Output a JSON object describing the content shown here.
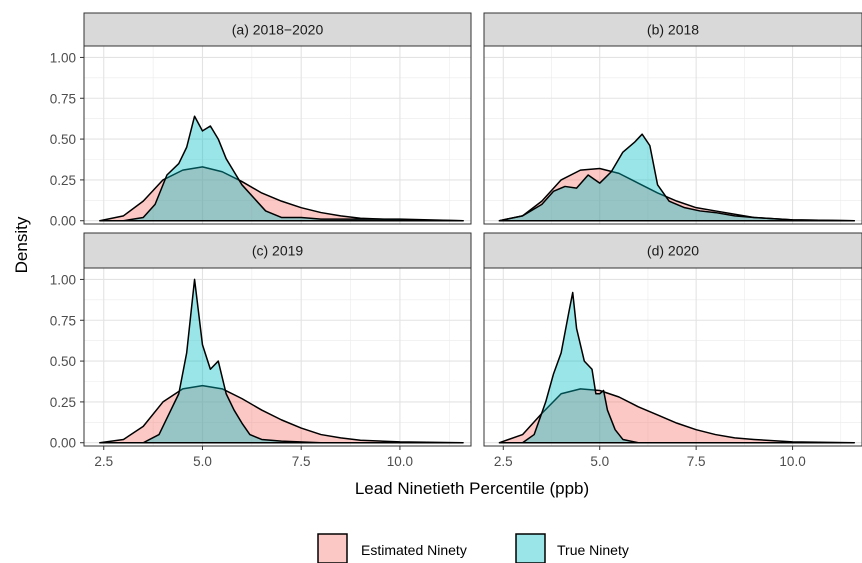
{
  "chart_data": {
    "type": "area",
    "xlabel": "Lead Ninetieth Percentile (ppb)",
    "ylabel": "Density",
    "xlim": [
      2.0,
      11.8
    ],
    "ylim": [
      -0.02,
      1.07
    ],
    "xticks": [
      2.5,
      5.0,
      7.5,
      10.0
    ],
    "xtick_labels": [
      "2.5",
      "5.0",
      "7.5",
      "10.0"
    ],
    "yticks": [
      0.0,
      0.25,
      0.5,
      0.75,
      1.0
    ],
    "ytick_labels": [
      "0.00",
      "0.25",
      "0.50",
      "0.75",
      "1.00"
    ],
    "grid": true,
    "legend_position": "bottom",
    "legend": [
      {
        "name": "Estimated Ninety",
        "color": "#F8766D"
      },
      {
        "name": "True Ninety",
        "color": "#00BFC4"
      }
    ],
    "panels": [
      {
        "title": "(a) 2018−2020",
        "series": [
          {
            "name": "Estimated Ninety",
            "points": [
              [
                2.4,
                0.0
              ],
              [
                3.0,
                0.03
              ],
              [
                3.5,
                0.12
              ],
              [
                4.0,
                0.25
              ],
              [
                4.5,
                0.31
              ],
              [
                5.0,
                0.33
              ],
              [
                5.5,
                0.3
              ],
              [
                6.0,
                0.24
              ],
              [
                6.5,
                0.17
              ],
              [
                7.0,
                0.12
              ],
              [
                7.5,
                0.08
              ],
              [
                8.0,
                0.05
              ],
              [
                8.5,
                0.03
              ],
              [
                9.0,
                0.015
              ],
              [
                10.0,
                0.005
              ],
              [
                11.6,
                0.0
              ]
            ]
          },
          {
            "name": "True Ninety",
            "points": [
              [
                3.0,
                0.0
              ],
              [
                3.5,
                0.02
              ],
              [
                3.8,
                0.1
              ],
              [
                4.1,
                0.28
              ],
              [
                4.4,
                0.35
              ],
              [
                4.6,
                0.45
              ],
              [
                4.8,
                0.64
              ],
              [
                5.0,
                0.55
              ],
              [
                5.2,
                0.58
              ],
              [
                5.4,
                0.5
              ],
              [
                5.6,
                0.38
              ],
              [
                5.8,
                0.3
              ],
              [
                6.0,
                0.22
              ],
              [
                6.3,
                0.14
              ],
              [
                6.6,
                0.06
              ],
              [
                7.0,
                0.02
              ],
              [
                7.5,
                0.02
              ],
              [
                8.0,
                0.01
              ],
              [
                9.0,
                0.01
              ],
              [
                10.0,
                0.01
              ],
              [
                11.6,
                0.0
              ]
            ]
          }
        ]
      },
      {
        "title": "(b) 2018",
        "series": [
          {
            "name": "Estimated Ninety",
            "points": [
              [
                2.4,
                0.0
              ],
              [
                3.0,
                0.03
              ],
              [
                3.5,
                0.12
              ],
              [
                4.0,
                0.25
              ],
              [
                4.5,
                0.31
              ],
              [
                5.0,
                0.32
              ],
              [
                5.5,
                0.29
              ],
              [
                6.0,
                0.23
              ],
              [
                6.5,
                0.17
              ],
              [
                7.0,
                0.12
              ],
              [
                7.5,
                0.08
              ],
              [
                8.0,
                0.06
              ],
              [
                8.5,
                0.04
              ],
              [
                9.0,
                0.02
              ],
              [
                10.0,
                0.005
              ],
              [
                11.6,
                0.0
              ]
            ]
          },
          {
            "name": "True Ninety",
            "points": [
              [
                2.4,
                0.0
              ],
              [
                3.0,
                0.03
              ],
              [
                3.5,
                0.1
              ],
              [
                3.8,
                0.18
              ],
              [
                4.1,
                0.21
              ],
              [
                4.4,
                0.2
              ],
              [
                4.7,
                0.28
              ],
              [
                5.0,
                0.23
              ],
              [
                5.3,
                0.3
              ],
              [
                5.6,
                0.42
              ],
              [
                5.9,
                0.48
              ],
              [
                6.1,
                0.53
              ],
              [
                6.3,
                0.46
              ],
              [
                6.5,
                0.22
              ],
              [
                6.8,
                0.12
              ],
              [
                7.2,
                0.08
              ],
              [
                7.6,
                0.06
              ],
              [
                8.0,
                0.05
              ],
              [
                8.5,
                0.03
              ],
              [
                9.0,
                0.02
              ],
              [
                10.0,
                0.005
              ],
              [
                11.6,
                0.0
              ]
            ]
          }
        ]
      },
      {
        "title": "(c) 2019",
        "series": [
          {
            "name": "Estimated Ninety",
            "points": [
              [
                2.4,
                0.0
              ],
              [
                3.0,
                0.02
              ],
              [
                3.5,
                0.1
              ],
              [
                4.0,
                0.25
              ],
              [
                4.5,
                0.33
              ],
              [
                5.0,
                0.35
              ],
              [
                5.5,
                0.33
              ],
              [
                6.0,
                0.27
              ],
              [
                6.5,
                0.2
              ],
              [
                7.0,
                0.14
              ],
              [
                7.5,
                0.09
              ],
              [
                8.0,
                0.05
              ],
              [
                8.5,
                0.03
              ],
              [
                9.0,
                0.015
              ],
              [
                10.0,
                0.005
              ],
              [
                11.6,
                0.0
              ]
            ]
          },
          {
            "name": "True Ninety",
            "points": [
              [
                3.5,
                0.0
              ],
              [
                3.9,
                0.05
              ],
              [
                4.2,
                0.2
              ],
              [
                4.4,
                0.3
              ],
              [
                4.6,
                0.55
              ],
              [
                4.8,
                1.0
              ],
              [
                5.0,
                0.6
              ],
              [
                5.2,
                0.45
              ],
              [
                5.4,
                0.5
              ],
              [
                5.6,
                0.3
              ],
              [
                5.8,
                0.2
              ],
              [
                6.0,
                0.12
              ],
              [
                6.2,
                0.05
              ],
              [
                6.5,
                0.02
              ],
              [
                7.0,
                0.01
              ],
              [
                8.0,
                0.0
              ]
            ]
          }
        ]
      },
      {
        "title": "(d) 2020",
        "series": [
          {
            "name": "Estimated Ninety",
            "points": [
              [
                2.4,
                0.0
              ],
              [
                3.0,
                0.05
              ],
              [
                3.5,
                0.18
              ],
              [
                4.0,
                0.3
              ],
              [
                4.5,
                0.33
              ],
              [
                5.0,
                0.32
              ],
              [
                5.5,
                0.28
              ],
              [
                6.0,
                0.22
              ],
              [
                6.5,
                0.17
              ],
              [
                7.0,
                0.12
              ],
              [
                7.5,
                0.08
              ],
              [
                8.0,
                0.05
              ],
              [
                8.5,
                0.03
              ],
              [
                9.0,
                0.02
              ],
              [
                10.0,
                0.005
              ],
              [
                11.6,
                0.0
              ]
            ]
          },
          {
            "name": "True Ninety",
            "points": [
              [
                3.0,
                0.0
              ],
              [
                3.3,
                0.05
              ],
              [
                3.6,
                0.25
              ],
              [
                3.8,
                0.42
              ],
              [
                4.0,
                0.55
              ],
              [
                4.2,
                0.8
              ],
              [
                4.3,
                0.92
              ],
              [
                4.4,
                0.7
              ],
              [
                4.6,
                0.5
              ],
              [
                4.8,
                0.45
              ],
              [
                4.9,
                0.3
              ],
              [
                5.0,
                0.3
              ],
              [
                5.1,
                0.32
              ],
              [
                5.2,
                0.2
              ],
              [
                5.4,
                0.08
              ],
              [
                5.6,
                0.02
              ],
              [
                6.0,
                0.0
              ]
            ]
          }
        ]
      }
    ]
  }
}
